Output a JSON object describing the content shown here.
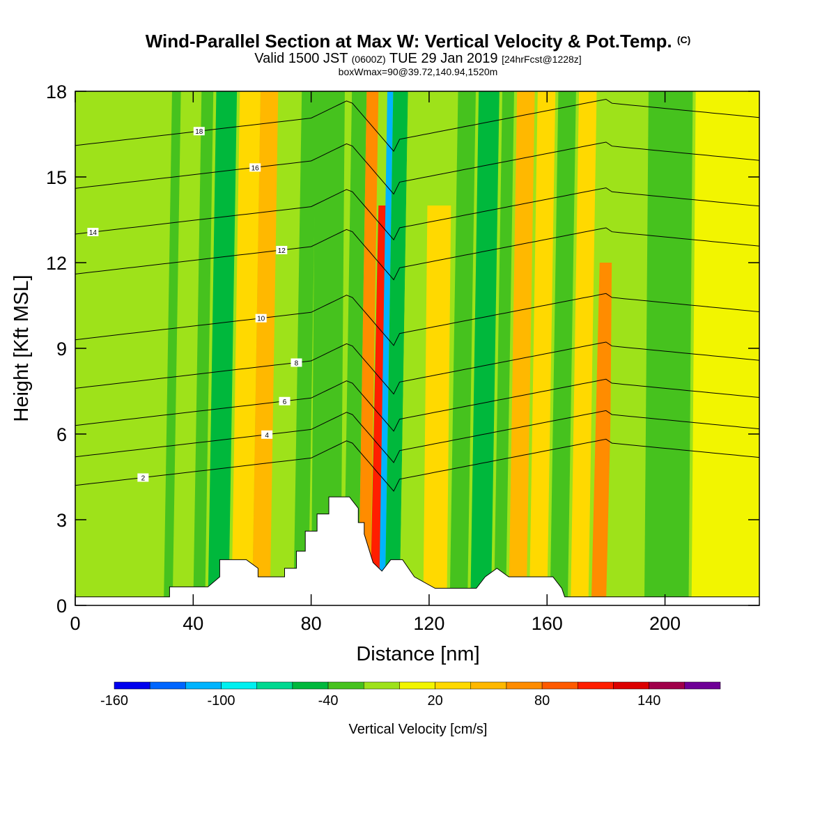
{
  "title": {
    "main": "Wind-Parallel Section at Max W: Vertical Velocity & Pot.Temp.",
    "copyright": "(C)",
    "valid_prefix": "Valid 1500 JST",
    "valid_utc": "(0600Z)",
    "valid_date": "TUE 29 Jan 2019",
    "forecast": "[24hrFcst@1228z]",
    "box_info": "boxWmax=90@39.72,140.94,1520m"
  },
  "chart_data": {
    "type": "heatmap",
    "xlabel": "Distance [nm]",
    "ylabel": "Height [Kft MSL]",
    "xlim": [
      0,
      232
    ],
    "ylim": [
      0,
      18
    ],
    "x_ticks": [
      "0",
      "40",
      "80",
      "120",
      "160",
      "200"
    ],
    "y_ticks": [
      "0",
      "3",
      "6",
      "9",
      "12",
      "15",
      "18"
    ],
    "colorbar": {
      "label": "Vertical Velocity [cm/s]",
      "tick_labels": [
        "-160",
        "-100",
        "-40",
        "20",
        "80",
        "140"
      ],
      "levels": [
        -160,
        -140,
        -120,
        -100,
        -80,
        -60,
        -40,
        -20,
        0,
        20,
        40,
        60,
        80,
        100,
        120,
        140,
        160
      ],
      "colors": [
        "#0000ee",
        "#0066ff",
        "#00b4ff",
        "#00f0f0",
        "#00d890",
        "#00b83c",
        "#46c21e",
        "#9ee21a",
        "#f2f500",
        "#ffd900",
        "#ffb800",
        "#ff8c00",
        "#ff5a00",
        "#ff1e00",
        "#dc0000",
        "#a0004a",
        "#6e0096"
      ]
    },
    "vertical_velocity_bands": [
      {
        "x": [
          0,
          6
        ],
        "w": -10,
        "top": 18
      },
      {
        "x": [
          6,
          26
        ],
        "w": -5,
        "top": 18
      },
      {
        "x": [
          30,
          33
        ],
        "w": -30,
        "top": 18
      },
      {
        "x": [
          40,
          44
        ],
        "w": -30,
        "top": 18
      },
      {
        "x": [
          45,
          52
        ],
        "w": -45,
        "top": 18
      },
      {
        "x": [
          53,
          60
        ],
        "w": 30,
        "top": 18
      },
      {
        "x": [
          60,
          66
        ],
        "w": 40,
        "top": 18
      },
      {
        "x": [
          67,
          73
        ],
        "w": -20,
        "top": 18
      },
      {
        "x": [
          74,
          79
        ],
        "w": -40,
        "top": 18
      },
      {
        "x": [
          80,
          90
        ],
        "w": -25,
        "top": 18
      },
      {
        "x": [
          91,
          96
        ],
        "w": -40,
        "top": 18
      },
      {
        "x": [
          96,
          100
        ],
        "w": 60,
        "top": 18
      },
      {
        "x": [
          100,
          103
        ],
        "w": 110,
        "top": 14
      },
      {
        "x": [
          103,
          105
        ],
        "w": -110,
        "top": 18
      },
      {
        "x": [
          105,
          110
        ],
        "w": -60,
        "top": 18
      },
      {
        "x": [
          110,
          117
        ],
        "w": -20,
        "top": 18
      },
      {
        "x": [
          118,
          126
        ],
        "w": 30,
        "top": 14
      },
      {
        "x": [
          127,
          133
        ],
        "w": -40,
        "top": 18
      },
      {
        "x": [
          134,
          141
        ],
        "w": -50,
        "top": 18
      },
      {
        "x": [
          142,
          146
        ],
        "w": -30,
        "top": 18
      },
      {
        "x": [
          147,
          153
        ],
        "w": 40,
        "top": 18
      },
      {
        "x": [
          154,
          160
        ],
        "w": 30,
        "top": 18
      },
      {
        "x": [
          161,
          167
        ],
        "w": -40,
        "top": 18
      },
      {
        "x": [
          168,
          174
        ],
        "w": 20,
        "top": 18
      },
      {
        "x": [
          175,
          180
        ],
        "w": 60,
        "top": 12
      },
      {
        "x": [
          181,
          192
        ],
        "w": -10,
        "top": 18
      },
      {
        "x": [
          193,
          208
        ],
        "w": -30,
        "top": 18
      },
      {
        "x": [
          209,
          232
        ],
        "w": 10,
        "top": 18
      }
    ],
    "terrain_top_kft": [
      {
        "x": 0,
        "h": 0.3
      },
      {
        "x": 32,
        "h": 0.3
      },
      {
        "x": 32,
        "h": 0.65
      },
      {
        "x": 45,
        "h": 0.65
      },
      {
        "x": 49,
        "h": 1.0
      },
      {
        "x": 49,
        "h": 1.6
      },
      {
        "x": 58,
        "h": 1.6
      },
      {
        "x": 62,
        "h": 1.3
      },
      {
        "x": 62,
        "h": 1.0
      },
      {
        "x": 71,
        "h": 1.0
      },
      {
        "x": 71,
        "h": 1.3
      },
      {
        "x": 75,
        "h": 1.3
      },
      {
        "x": 75,
        "h": 1.9
      },
      {
        "x": 78,
        "h": 1.9
      },
      {
        "x": 78,
        "h": 2.6
      },
      {
        "x": 82,
        "h": 2.6
      },
      {
        "x": 82,
        "h": 3.2
      },
      {
        "x": 86,
        "h": 3.2
      },
      {
        "x": 86,
        "h": 3.8
      },
      {
        "x": 93,
        "h": 3.8
      },
      {
        "x": 96,
        "h": 3.4
      },
      {
        "x": 96,
        "h": 2.9
      },
      {
        "x": 98,
        "h": 2.9
      },
      {
        "x": 98,
        "h": 2.5
      },
      {
        "x": 101,
        "h": 1.5
      },
      {
        "x": 104,
        "h": 1.2
      },
      {
        "x": 107,
        "h": 1.6
      },
      {
        "x": 111,
        "h": 1.6
      },
      {
        "x": 115,
        "h": 1.0
      },
      {
        "x": 122,
        "h": 0.6
      },
      {
        "x": 136,
        "h": 0.6
      },
      {
        "x": 139,
        "h": 1.0
      },
      {
        "x": 143,
        "h": 1.3
      },
      {
        "x": 147,
        "h": 1.0
      },
      {
        "x": 162,
        "h": 1.0
      },
      {
        "x": 165,
        "h": 0.6
      },
      {
        "x": 166,
        "h": 0.3
      },
      {
        "x": 232,
        "h": 0.3
      }
    ],
    "theta_contours": [
      {
        "level": 2,
        "y0": 4.2,
        "label": "2",
        "label_x": 23
      },
      {
        "level": 4,
        "y0": 5.2,
        "label": "4",
        "label_x": 65
      },
      {
        "level": 6,
        "y0": 6.3,
        "label": "6",
        "label_x": 71
      },
      {
        "level": 8,
        "y0": 7.6,
        "label": "8",
        "label_x": 75
      },
      {
        "level": 10,
        "y0": 9.3,
        "label": "10",
        "label_x": 63
      },
      {
        "level": 12,
        "y0": 11.6,
        "label": "12",
        "label_x": 70
      },
      {
        "level": 14,
        "y0": 13.0,
        "label": "14",
        "label_x": 6
      },
      {
        "level": 16,
        "y0": 14.6,
        "label": "16",
        "label_x": 61
      },
      {
        "level": 18,
        "y0": 16.1,
        "label": "18",
        "label_x": 42
      }
    ]
  }
}
